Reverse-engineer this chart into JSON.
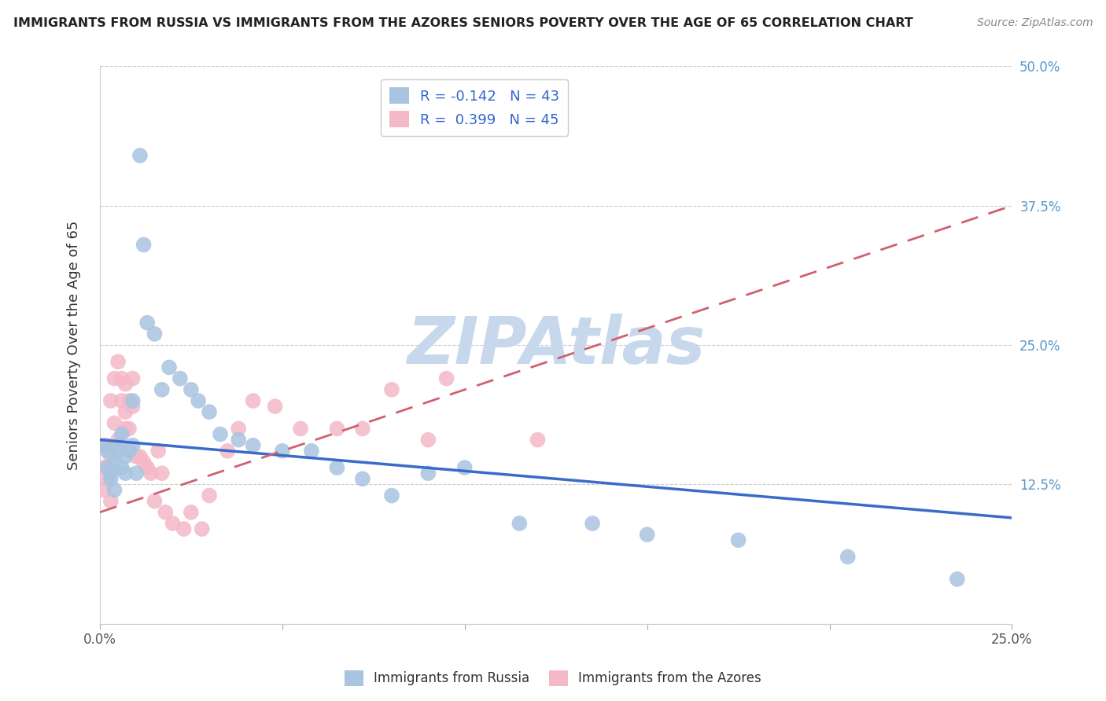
{
  "title": "IMMIGRANTS FROM RUSSIA VS IMMIGRANTS FROM THE AZORES SENIORS POVERTY OVER THE AGE OF 65 CORRELATION CHART",
  "source": "Source: ZipAtlas.com",
  "ylabel": "Seniors Poverty Over the Age of 65",
  "xlim": [
    0.0,
    0.25
  ],
  "ylim": [
    0.0,
    0.5
  ],
  "xticks": [
    0.0,
    0.05,
    0.1,
    0.15,
    0.2,
    0.25
  ],
  "yticks": [
    0.0,
    0.125,
    0.25,
    0.375,
    0.5
  ],
  "xtick_labels": [
    "0.0%",
    "",
    "",
    "",
    "",
    "25.0%"
  ],
  "ytick_labels_right": [
    "",
    "12.5%",
    "25.0%",
    "37.5%",
    "50.0%"
  ],
  "russia_color": "#a8c4e0",
  "azores_color": "#f4b8c8",
  "russia_line_color": "#3a6bc9",
  "azores_line_color": "#d06070",
  "russia_R": -0.142,
  "russia_N": 43,
  "azores_R": 0.399,
  "azores_N": 45,
  "watermark": "ZIPAtlas",
  "watermark_color": "#c8d8ec",
  "legend_label_russia": "Immigrants from Russia",
  "legend_label_azores": "Immigrants from the Azores",
  "russia_x": [
    0.001,
    0.002,
    0.002,
    0.003,
    0.003,
    0.004,
    0.004,
    0.005,
    0.005,
    0.006,
    0.006,
    0.007,
    0.007,
    0.008,
    0.009,
    0.009,
    0.01,
    0.011,
    0.012,
    0.013,
    0.015,
    0.017,
    0.019,
    0.022,
    0.025,
    0.027,
    0.03,
    0.033,
    0.038,
    0.042,
    0.05,
    0.058,
    0.065,
    0.072,
    0.08,
    0.09,
    0.1,
    0.115,
    0.135,
    0.15,
    0.175,
    0.205,
    0.235
  ],
  "russia_y": [
    0.16,
    0.155,
    0.14,
    0.135,
    0.13,
    0.145,
    0.12,
    0.16,
    0.155,
    0.14,
    0.17,
    0.15,
    0.135,
    0.155,
    0.16,
    0.2,
    0.135,
    0.42,
    0.34,
    0.27,
    0.26,
    0.21,
    0.23,
    0.22,
    0.21,
    0.2,
    0.19,
    0.17,
    0.165,
    0.16,
    0.155,
    0.155,
    0.14,
    0.13,
    0.115,
    0.135,
    0.14,
    0.09,
    0.09,
    0.08,
    0.075,
    0.06,
    0.04
  ],
  "azores_x": [
    0.001,
    0.001,
    0.002,
    0.002,
    0.003,
    0.003,
    0.003,
    0.004,
    0.004,
    0.005,
    0.005,
    0.006,
    0.006,
    0.007,
    0.007,
    0.007,
    0.008,
    0.008,
    0.009,
    0.009,
    0.01,
    0.011,
    0.012,
    0.013,
    0.014,
    0.015,
    0.016,
    0.017,
    0.018,
    0.02,
    0.023,
    0.025,
    0.028,
    0.03,
    0.035,
    0.038,
    0.042,
    0.048,
    0.055,
    0.065,
    0.072,
    0.08,
    0.09,
    0.095,
    0.12
  ],
  "azores_y": [
    0.14,
    0.12,
    0.16,
    0.13,
    0.2,
    0.15,
    0.11,
    0.22,
    0.18,
    0.235,
    0.165,
    0.22,
    0.2,
    0.215,
    0.19,
    0.175,
    0.2,
    0.175,
    0.22,
    0.195,
    0.15,
    0.15,
    0.145,
    0.14,
    0.135,
    0.11,
    0.155,
    0.135,
    0.1,
    0.09,
    0.085,
    0.1,
    0.085,
    0.115,
    0.155,
    0.175,
    0.2,
    0.195,
    0.175,
    0.175,
    0.175,
    0.21,
    0.165,
    0.22,
    0.165
  ],
  "russia_line_x0": 0.0,
  "russia_line_x1": 0.25,
  "russia_line_y0": 0.165,
  "russia_line_y1": 0.095,
  "azores_line_x0": 0.0,
  "azores_line_x1": 0.25,
  "azores_line_y0": 0.1,
  "azores_line_y1": 0.375
}
